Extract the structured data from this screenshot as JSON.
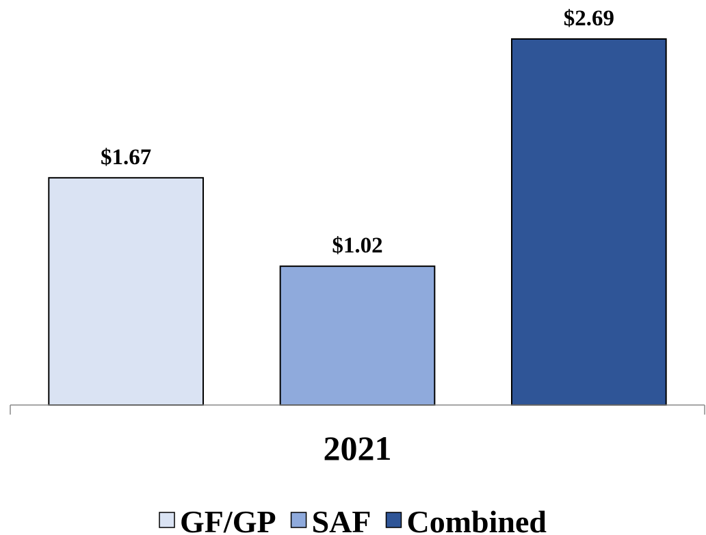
{
  "chart_data": {
    "type": "bar",
    "categories": [
      "2021"
    ],
    "series": [
      {
        "name": "GF/GP",
        "color": "#dae3f3",
        "values": [
          1.67
        ],
        "value_labels": [
          "$1.67"
        ]
      },
      {
        "name": "SAF",
        "color": "#8faadc",
        "values": [
          1.02
        ],
        "value_labels": [
          "$1.02"
        ]
      },
      {
        "name": "Combined",
        "color": "#2f5597",
        "values": [
          2.69
        ],
        "value_labels": [
          "$2.69"
        ]
      }
    ],
    "ylim": [
      0,
      2.7
    ],
    "legend": "bottom"
  }
}
